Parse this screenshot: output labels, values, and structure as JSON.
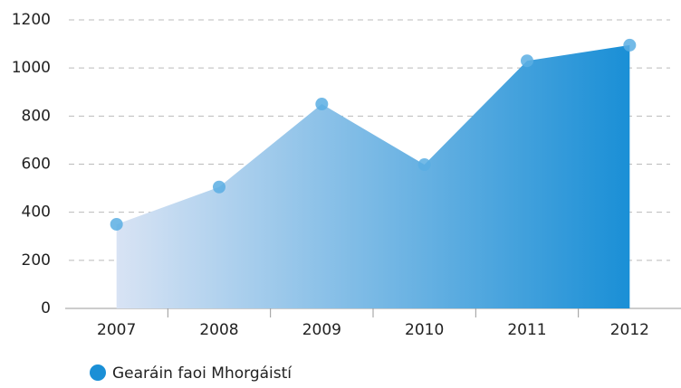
{
  "chart_data": {
    "type": "area",
    "categories": [
      "2007",
      "2008",
      "2009",
      "2010",
      "2011",
      "2012"
    ],
    "series": [
      {
        "name": "Gearáin faoi Mhorgáistí",
        "color": "#1a8fd6",
        "values": [
          350,
          505,
          850,
          598,
          1030,
          1095
        ]
      }
    ],
    "ylim": [
      0,
      1200
    ],
    "yticks": [
      0,
      200,
      400,
      600,
      800,
      1000,
      1200
    ],
    "grid": true,
    "legend": "bottom-left"
  }
}
